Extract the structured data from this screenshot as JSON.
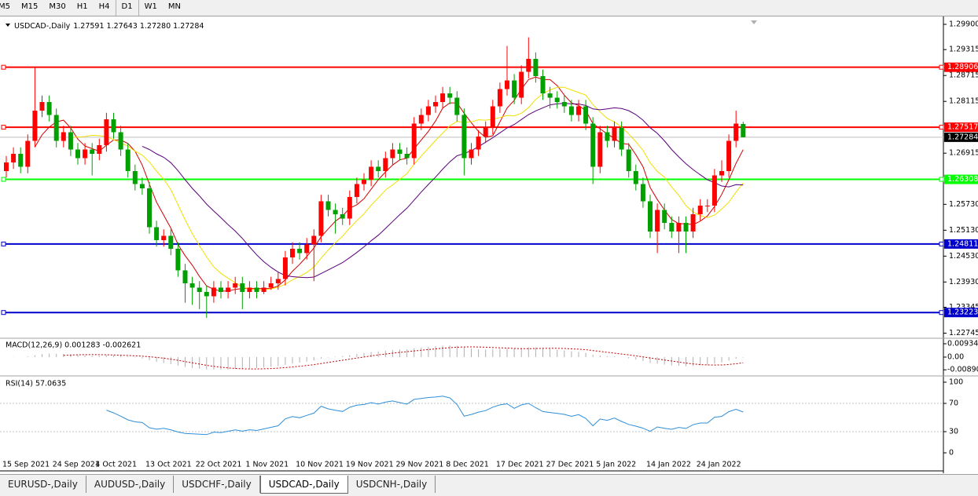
{
  "toolbar": {
    "timeframes": [
      "M5",
      "M15",
      "M30",
      "H1",
      "H4",
      "D1",
      "W1",
      "MN"
    ]
  },
  "chart_data": {
    "type": "candlestick",
    "title": "USDCAD-,Daily",
    "ohlc_label": "1.27591 1.27643 1.27280 1.27284",
    "up_color": "#ff0000",
    "down_color": "#00a000",
    "ma_colors": [
      "#d40000",
      "#f0e000",
      "#5a007a"
    ],
    "categories": [
      "15 Sep 2021",
      null,
      null,
      null,
      null,
      null,
      null,
      "24 Sep 2021",
      null,
      null,
      null,
      null,
      null,
      "4 Oct 2021",
      null,
      null,
      null,
      null,
      null,
      null,
      "13 Oct 2021",
      null,
      null,
      null,
      null,
      null,
      null,
      "22 Oct 2021",
      null,
      null,
      null,
      null,
      null,
      null,
      "1 Nov 2021",
      null,
      null,
      null,
      null,
      null,
      null,
      "10 Nov 2021",
      null,
      null,
      null,
      null,
      null,
      null,
      "19 Nov 2021",
      null,
      null,
      null,
      null,
      null,
      null,
      "29 Nov 2021",
      null,
      null,
      null,
      null,
      null,
      null,
      "8 Dec 2021",
      null,
      null,
      null,
      null,
      null,
      null,
      "17 Dec 2021",
      null,
      null,
      null,
      null,
      null,
      null,
      "27 Dec 2021",
      null,
      null,
      null,
      null,
      null,
      null,
      "5 Jan 2022",
      null,
      null,
      null,
      null,
      null,
      null,
      "14 Jan 2022",
      null,
      null,
      null,
      null,
      null,
      null,
      "24 Jan 2022",
      null,
      null,
      null,
      null,
      null,
      null
    ],
    "open": [
      1.265,
      1.267,
      1.269,
      1.266,
      1.272,
      1.279,
      1.281,
      1.278,
      1.272,
      1.274,
      1.27,
      1.268,
      1.27,
      1.269,
      1.271,
      1.277,
      1.274,
      1.27,
      1.265,
      1.262,
      1.261,
      1.252,
      1.249,
      1.25,
      1.247,
      1.242,
      1.239,
      1.238,
      1.237,
      1.236,
      1.238,
      1.237,
      1.238,
      1.239,
      1.237,
      1.238,
      1.237,
      1.238,
      1.239,
      1.24,
      1.245,
      1.247,
      1.246,
      1.248,
      1.25,
      1.258,
      1.256,
      1.255,
      1.254,
      1.259,
      1.262,
      1.263,
      1.266,
      1.265,
      1.268,
      1.27,
      1.269,
      1.268,
      1.276,
      1.278,
      1.28,
      1.281,
      1.283,
      1.282,
      1.278,
      1.268,
      1.27,
      1.273,
      1.275,
      1.28,
      1.284,
      1.286,
      1.282,
      1.288,
      1.291,
      1.287,
      1.283,
      1.282,
      1.281,
      1.28,
      1.278,
      1.28,
      1.276,
      1.266,
      1.274,
      1.272,
      1.275,
      1.27,
      1.265,
      1.262,
      1.258,
      1.251,
      1.256,
      1.253,
      1.251,
      1.253,
      1.251,
      1.255,
      1.257,
      1.257,
      1.264,
      1.265,
      1.272,
      1.27591
    ],
    "high": [
      1.2685,
      1.2705,
      1.2705,
      1.2735,
      1.289,
      1.2825,
      1.2825,
      1.2795,
      1.2755,
      1.2755,
      1.2715,
      1.2715,
      1.2715,
      1.2725,
      1.2785,
      1.2785,
      1.2755,
      1.2715,
      1.2665,
      1.2635,
      1.2625,
      1.2535,
      1.2515,
      1.2515,
      1.2485,
      1.2435,
      1.2405,
      1.2395,
      1.2385,
      1.2395,
      1.2395,
      1.2395,
      1.2405,
      1.2405,
      1.2395,
      1.2395,
      1.2395,
      1.2405,
      1.2415,
      1.2465,
      1.2485,
      1.2485,
      1.2495,
      1.2515,
      1.2595,
      1.2595,
      1.2575,
      1.2565,
      1.2605,
      1.2635,
      1.2645,
      1.2675,
      1.2675,
      1.2695,
      1.2715,
      1.2715,
      1.2705,
      1.2775,
      1.2795,
      1.2815,
      1.2825,
      1.2845,
      1.2845,
      1.2835,
      1.2795,
      1.2715,
      1.2745,
      1.2765,
      1.2815,
      1.2855,
      1.294,
      1.2875,
      1.2895,
      1.296,
      1.2925,
      1.2885,
      1.2845,
      1.2835,
      1.2825,
      1.2815,
      1.2815,
      1.2815,
      1.2775,
      1.2755,
      1.2755,
      1.2765,
      1.2765,
      1.2715,
      1.2665,
      1.2635,
      1.2595,
      1.2575,
      1.2575,
      1.2545,
      1.2545,
      1.2545,
      1.2565,
      1.2585,
      1.2585,
      1.2655,
      1.2675,
      1.2735,
      1.279,
      1.27643
    ],
    "low": [
      1.2635,
      1.2655,
      1.2645,
      1.2645,
      1.2705,
      1.2775,
      1.2765,
      1.2705,
      1.2705,
      1.2685,
      1.2665,
      1.2665,
      1.264,
      1.2675,
      1.2695,
      1.2725,
      1.2685,
      1.2635,
      1.2605,
      1.2595,
      1.2505,
      1.2475,
      1.2475,
      1.2455,
      1.2405,
      1.2345,
      1.234,
      1.233,
      1.231,
      1.2345,
      1.2355,
      1.2355,
      1.2365,
      1.233,
      1.2355,
      1.2355,
      1.2365,
      1.2375,
      1.2375,
      1.2385,
      1.2435,
      1.2445,
      1.2445,
      1.2395,
      1.2485,
      1.2545,
      1.2505,
      1.2525,
      1.2525,
      1.2575,
      1.2605,
      1.2615,
      1.2635,
      1.2635,
      1.2665,
      1.2675,
      1.2665,
      1.2665,
      1.2745,
      1.2765,
      1.2785,
      1.2795,
      1.2805,
      1.2765,
      1.264,
      1.2665,
      1.2685,
      1.2715,
      1.2735,
      1.2785,
      1.2825,
      1.2805,
      1.2805,
      1.2865,
      1.2855,
      1.2815,
      1.2795,
      1.2795,
      1.2785,
      1.2765,
      1.2765,
      1.2745,
      1.262,
      1.2645,
      1.2705,
      1.2705,
      1.2685,
      1.2635,
      1.2605,
      1.2565,
      1.2495,
      1.246,
      1.2515,
      1.2495,
      1.246,
      1.246,
      1.2495,
      1.2535,
      1.2555,
      1.2555,
      1.2625,
      1.2635,
      1.2705,
      1.2728
    ],
    "close": [
      1.267,
      1.269,
      1.266,
      1.272,
      1.279,
      1.281,
      1.278,
      1.272,
      1.274,
      1.27,
      1.268,
      1.27,
      1.269,
      1.271,
      1.277,
      1.274,
      1.27,
      1.265,
      1.262,
      1.261,
      1.252,
      1.249,
      1.25,
      1.247,
      1.242,
      1.239,
      1.238,
      1.237,
      1.236,
      1.238,
      1.237,
      1.238,
      1.239,
      1.237,
      1.238,
      1.237,
      1.238,
      1.239,
      1.24,
      1.245,
      1.247,
      1.246,
      1.248,
      1.25,
      1.258,
      1.256,
      1.255,
      1.254,
      1.259,
      1.262,
      1.263,
      1.266,
      1.265,
      1.268,
      1.27,
      1.269,
      1.268,
      1.276,
      1.278,
      1.28,
      1.281,
      1.283,
      1.282,
      1.278,
      1.268,
      1.27,
      1.273,
      1.275,
      1.28,
      1.284,
      1.286,
      1.282,
      1.288,
      1.291,
      1.287,
      1.283,
      1.282,
      1.281,
      1.28,
      1.278,
      1.28,
      1.276,
      1.266,
      1.274,
      1.272,
      1.275,
      1.27,
      1.265,
      1.262,
      1.258,
      1.251,
      1.256,
      1.253,
      1.251,
      1.253,
      1.251,
      1.255,
      1.257,
      1.257,
      1.264,
      1.265,
      1.272,
      1.276,
      1.27284
    ],
    "ylim": [
      1.22645,
      1.30064
    ],
    "yticks": [
      {
        "value": 1.299,
        "label": "1.29900"
      },
      1.29315,
      1.28715,
      1.28115,
      1.26915,
      {
        "value": 1.2573,
        "label": "1.25730"
      },
      {
        "value": 1.2513,
        "label": "1.25130"
      },
      {
        "value": 1.2453,
        "label": "1.24530"
      },
      {
        "value": 1.2393,
        "label": "1.23930"
      },
      1.23345,
      1.22745
    ],
    "levels": [
      {
        "value": 1.28906,
        "color": "#ff0000"
      },
      {
        "value": 1.27517,
        "color": "#ff0000"
      },
      {
        "value": 1.26308,
        "color": "#00ff00"
      },
      {
        "value": 1.24811,
        "color": "#0000cc"
      },
      {
        "value": 1.23223,
        "color": "#0000cc"
      }
    ],
    "macd": {
      "label": "MACD(12,26,9) 0.001283 -0.002621",
      "ylim": [
        -0.01264,
        0.01264
      ],
      "yticks": [
        0.009345,
        {
          "value": 0,
          "label": "0.00"
        },
        -0.008902
      ]
    },
    "rsi": {
      "label": "RSI(14) 57.0635",
      "ylim": [
        0,
        100
      ],
      "yticks": [
        100,
        70,
        30,
        0
      ],
      "color": "#2f8fd8"
    }
  },
  "tabs": [
    "EURUSD-,Daily",
    "AUDUSD-,Daily",
    "USDCHF-,Daily",
    "USDCAD-,Daily",
    "USDCNH-,Daily"
  ],
  "active_tab": 3
}
